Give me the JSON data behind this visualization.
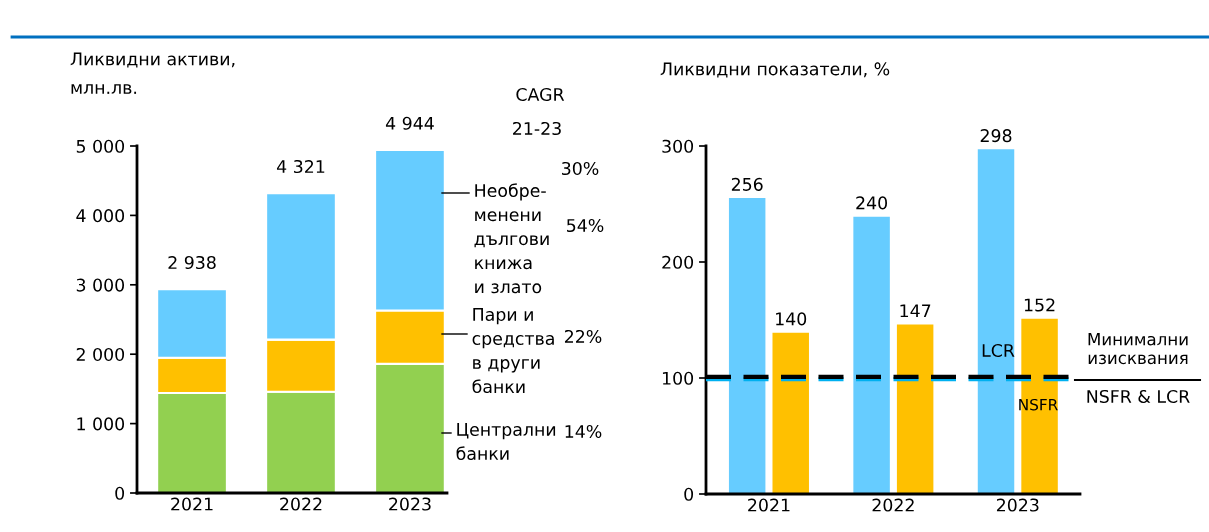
{
  "chart_data": [
    {
      "type": "bar",
      "title": "Ликвидни активи,\nмлн.лв.",
      "categories": [
        "2021",
        "2022",
        "2023"
      ],
      "stacked": true,
      "series": [
        {
          "name": "Централни\nбанки",
          "color": "#92d050",
          "values": [
            1440,
            1460,
            1860
          ]
        },
        {
          "name": "Пари и\nсредства\nв други\nбанки",
          "color": "#ffc000",
          "values": [
            510,
            750,
            770
          ]
        },
        {
          "name": "Необре-\nменени\nдългови\nкнижа\nи злато",
          "color": "#66ccff",
          "values": [
            988,
            2111,
            2314
          ]
        }
      ],
      "totals": [
        "2 938",
        "4 321",
        "4 944"
      ],
      "ylim": [
        0,
        5000
      ],
      "yticks": [
        0,
        {
          "value": 1000,
          "label": "1 000"
        },
        {
          "value": 2000,
          "label": "2 000"
        },
        {
          "value": 3000,
          "label": "3 000"
        },
        {
          "value": 4000,
          "label": "4 000"
        },
        {
          "value": 5000,
          "label": "5 000"
        }
      ],
      "annotations": [
        "CAGR",
        "21-23",
        "30%",
        "54%",
        "22%",
        "14%"
      ],
      "grid": false,
      "legend": false
    },
    {
      "type": "bar",
      "title": "Ликвидни показатели, %",
      "categories": [
        "2021",
        "2022",
        "2023"
      ],
      "series": [
        {
          "name": "LCR",
          "color": "#66ccff",
          "values": [
            256,
            240,
            298
          ]
        },
        {
          "name": "NSFR",
          "color": "#ffc000",
          "values": [
            140,
            147,
            152
          ]
        }
      ],
      "data_labels": true,
      "ylim": [
        0,
        300
      ],
      "yticks": [
        0,
        100,
        200,
        300
      ],
      "ref_lines": [
        {
          "axis": "y",
          "value": 100,
          "color": "#00b0f0",
          "line_style": "dashed",
          "label": "Минимални\nизисквания"
        },
        {
          "axis": "y",
          "value": 100,
          "color": "#000000",
          "line_style": "dashed"
        }
      ],
      "annotations": [
        "NSFR & LCR"
      ],
      "grid": false,
      "legend": false
    }
  ]
}
